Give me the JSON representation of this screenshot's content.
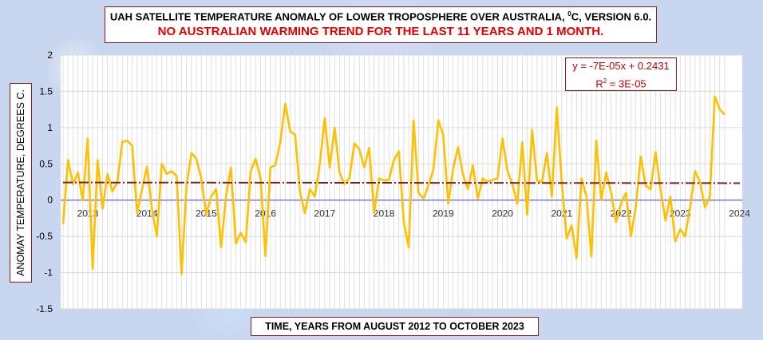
{
  "title": {
    "line1_prefix": "UAH SATELLITE TEMPERATURE ANOMALY OF LOWER TROPOSPHERE OVER AUSTRALIA, ",
    "degree_symbol": "0",
    "line1_suffix": "C, VERSION 6.0.",
    "line2": "NO AUSTRALIAN WARMING TREND FOR THE LAST 11 YEARS AND 1 MONTH."
  },
  "trendline": {
    "equation": "y = -7E-05x + 0.2431",
    "r2_prefix": "R",
    "r2_exp": "2",
    "r2_suffix": " = 3E-05"
  },
  "ylabel": "ANOMAY TEMPERATURE, DEGREES C.",
  "xlabel": "TIME, YEARS FROM AUGUST 2012  TO OCTOBER 2023",
  "chart_data": {
    "type": "line",
    "x_start": "2012-08",
    "x_end": "2023-10",
    "ylim": [
      -1.5,
      2
    ],
    "yticks": [
      "2",
      "1.5",
      "1",
      "0.5",
      "0",
      "-0.5",
      "-1",
      "-1.5"
    ],
    "ytick_values": [
      2,
      1.5,
      1,
      0.5,
      0,
      -0.5,
      -1,
      -1.5
    ],
    "year_labels": [
      "2013",
      "2014",
      "2015",
      "2016",
      "2017",
      "2018",
      "2019",
      "2020",
      "2021",
      "2022",
      "2023",
      "2024"
    ],
    "grid": true,
    "series_color": "#ffc000",
    "trend_color": "#7b1f1f",
    "zero_line_color": "#7b7bdc",
    "trend_start": 0.243,
    "trend_end": 0.234,
    "values": [
      -0.33,
      0.55,
      0.22,
      0.38,
      0.0,
      0.85,
      -0.95,
      0.55,
      -0.12,
      0.36,
      0.12,
      0.25,
      0.8,
      0.82,
      0.75,
      -0.18,
      0.15,
      0.46,
      -0.12,
      -0.5,
      0.5,
      0.36,
      0.4,
      0.33,
      -1.02,
      0.2,
      0.65,
      0.57,
      0.3,
      -0.2,
      0.05,
      0.15,
      -0.65,
      0.05,
      0.45,
      -0.6,
      -0.45,
      -0.58,
      0.4,
      0.57,
      0.3,
      -0.77,
      0.45,
      0.48,
      0.8,
      1.33,
      0.95,
      0.9,
      0.1,
      -0.18,
      0.15,
      0.05,
      0.5,
      1.13,
      0.45,
      1.0,
      0.38,
      0.22,
      0.3,
      0.78,
      0.7,
      0.45,
      0.72,
      -0.18,
      0.3,
      0.27,
      0.28,
      0.55,
      0.67,
      -0.3,
      -0.65,
      1.1,
      0.1,
      0.02,
      0.2,
      0.42,
      1.1,
      0.9,
      -0.05,
      0.43,
      0.73,
      0.35,
      0.15,
      0.48,
      0.02,
      0.3,
      0.25,
      0.28,
      0.3,
      0.85,
      0.4,
      0.22,
      -0.05,
      0.8,
      -0.2,
      0.97,
      0.27,
      0.25,
      0.65,
      0.05,
      1.28,
      0.25,
      -0.53,
      -0.35,
      -0.8,
      0.3,
      0.05,
      -0.78,
      0.82,
      0.0,
      0.38,
      0.1,
      -0.3,
      -0.05,
      0.1,
      -0.5,
      -0.1,
      0.6,
      0.2,
      0.15,
      0.66,
      0.15,
      -0.28,
      0.05,
      -0.57,
      -0.4,
      -0.5,
      -0.1,
      0.4,
      0.25,
      -0.1,
      0.05,
      1.43,
      1.25,
      1.18
    ]
  }
}
